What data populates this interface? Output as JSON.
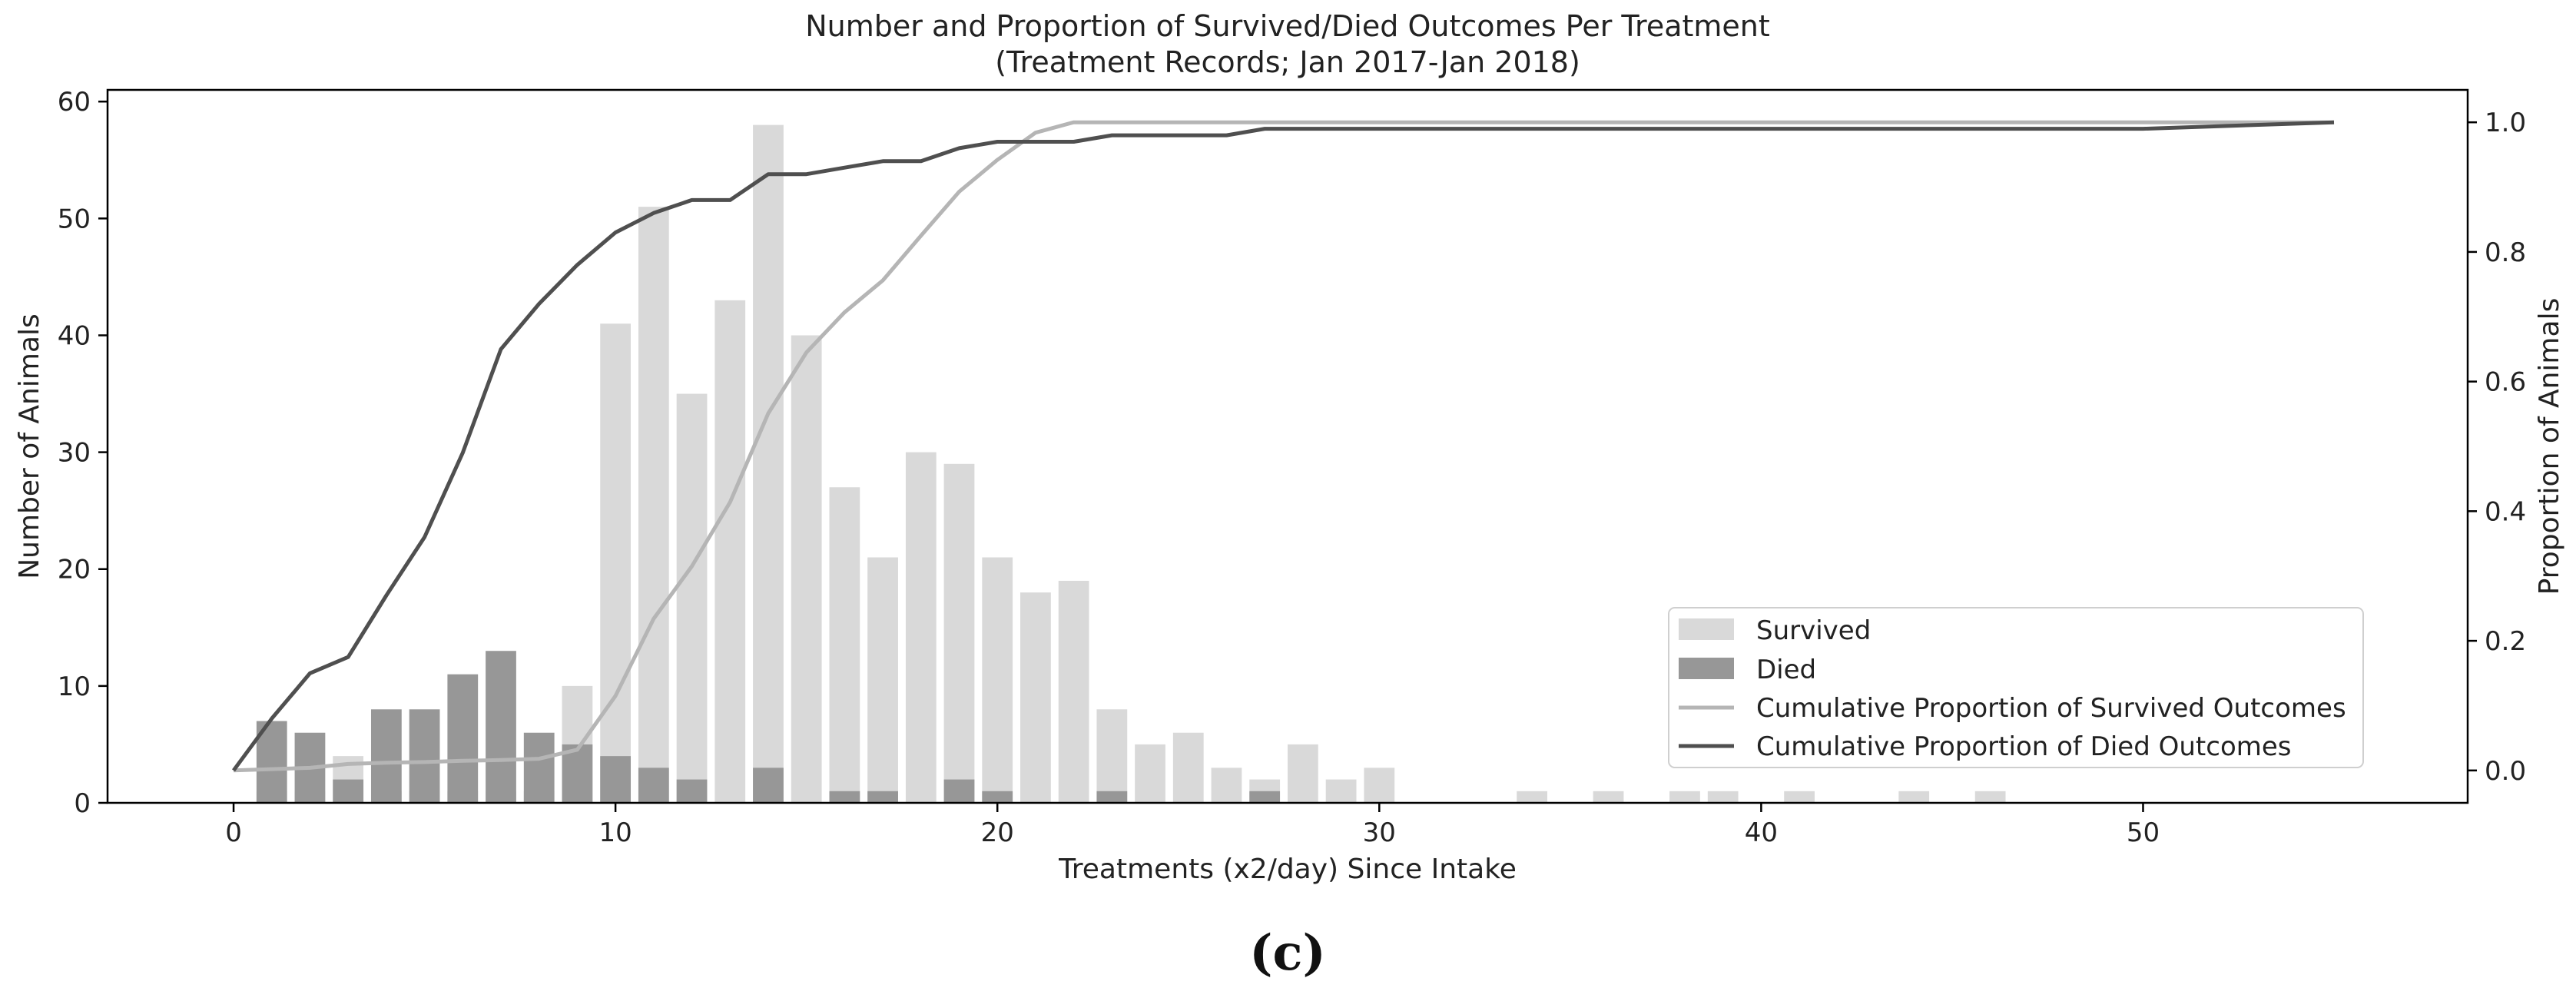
{
  "chart_data": {
    "type": "bar",
    "title": "Number and Proportion of Survived/Died Outcomes Per Treatment",
    "subtitle": "(Treatment Records; Jan 2017-Jan 2018)",
    "xlabel": "Treatments (x2/day) Since Intake",
    "ylabel": "Number of Animals",
    "y2label": "Proportion of Animals",
    "caption": "(c)",
    "xlim": [
      -3.3,
      58.5
    ],
    "ylim": [
      0,
      61
    ],
    "y2lim": [
      -0.05,
      1.05
    ],
    "x_ticks": [
      0,
      10,
      20,
      30,
      40,
      50
    ],
    "y_ticks": [
      0,
      10,
      20,
      30,
      40,
      50,
      60
    ],
    "y2_ticks": [
      0.0,
      0.2,
      0.4,
      0.6,
      0.8,
      1.0
    ],
    "y2_tick_labels": [
      "0.0",
      "0.2",
      "0.4",
      "0.6",
      "0.8",
      "1.0"
    ],
    "grid": false,
    "legend_position": "lower-right",
    "colors": {
      "survived_bar": "#d9d9d9",
      "died_bar": "#979797",
      "survived_line": "#b5b5b5",
      "died_line": "#4f4f4f",
      "axis": "#000000"
    },
    "series": [
      {
        "name": "Survived",
        "kind": "bar",
        "x": [
          1,
          2,
          3,
          4,
          5,
          6,
          7,
          8,
          9,
          10,
          11,
          12,
          13,
          14,
          15,
          16,
          17,
          18,
          19,
          20,
          21,
          22,
          23,
          24,
          25,
          26,
          27,
          28,
          29,
          30,
          34,
          36,
          38,
          39,
          41,
          44,
          46
        ],
        "values": [
          1,
          1,
          4,
          1,
          1,
          1,
          1,
          1,
          10,
          41,
          51,
          35,
          43,
          58,
          40,
          27,
          21,
          30,
          29,
          21,
          18,
          19,
          8,
          5,
          6,
          3,
          2,
          5,
          2,
          3,
          1,
          1,
          1,
          1,
          1,
          1,
          1
        ]
      },
      {
        "name": "Died",
        "kind": "bar",
        "x": [
          1,
          2,
          3,
          4,
          5,
          6,
          7,
          8,
          9,
          10,
          11,
          12,
          14,
          16,
          17,
          19,
          20,
          23,
          27
        ],
        "values": [
          7,
          6,
          2,
          8,
          8,
          11,
          13,
          6,
          5,
          4,
          3,
          2,
          3,
          1,
          1,
          2,
          1,
          1,
          1
        ]
      },
      {
        "name": "Cumulative Proportion of Survived Outcomes",
        "kind": "line",
        "x": [
          0,
          1,
          2,
          3,
          4,
          5,
          6,
          7,
          8,
          9,
          10,
          11,
          12,
          13,
          14,
          15,
          16,
          17,
          18,
          19,
          20,
          21,
          22,
          23,
          24,
          25,
          26,
          27,
          28,
          29,
          30,
          34,
          36,
          38,
          39,
          41,
          44,
          46,
          55
        ],
        "values": [
          0.0,
          0.002,
          0.004,
          0.01,
          0.012,
          0.013,
          0.015,
          0.016,
          0.018,
          0.032,
          0.115,
          0.234,
          0.315,
          0.414,
          0.551,
          0.645,
          0.707,
          0.756,
          0.825,
          0.893,
          0.942,
          0.984,
          1.0,
          1.0,
          1.0,
          1.0,
          1.0,
          1.0,
          1.0,
          1.0,
          1.0,
          1.0,
          1.0,
          1.0,
          1.0,
          1.0,
          1.0,
          1.0,
          1.0
        ]
      },
      {
        "name": "Cumulative Proportion of Died Outcomes",
        "kind": "line",
        "x": [
          0,
          1,
          2,
          3,
          4,
          5,
          6,
          7,
          8,
          9,
          10,
          11,
          12,
          13,
          14,
          15,
          16,
          17,
          18,
          19,
          20,
          21,
          22,
          23,
          24,
          25,
          26,
          27,
          28,
          30,
          35,
          40,
          45,
          50,
          55
        ],
        "values": [
          0.0,
          0.08,
          0.15,
          0.175,
          0.27,
          0.36,
          0.49,
          0.65,
          0.72,
          0.78,
          0.83,
          0.86,
          0.88,
          0.88,
          0.92,
          0.92,
          0.93,
          0.94,
          0.94,
          0.96,
          0.97,
          0.97,
          0.97,
          0.98,
          0.98,
          0.98,
          0.98,
          0.99,
          0.99,
          0.99,
          0.99,
          0.99,
          0.99,
          0.99,
          1.0
        ]
      }
    ]
  }
}
